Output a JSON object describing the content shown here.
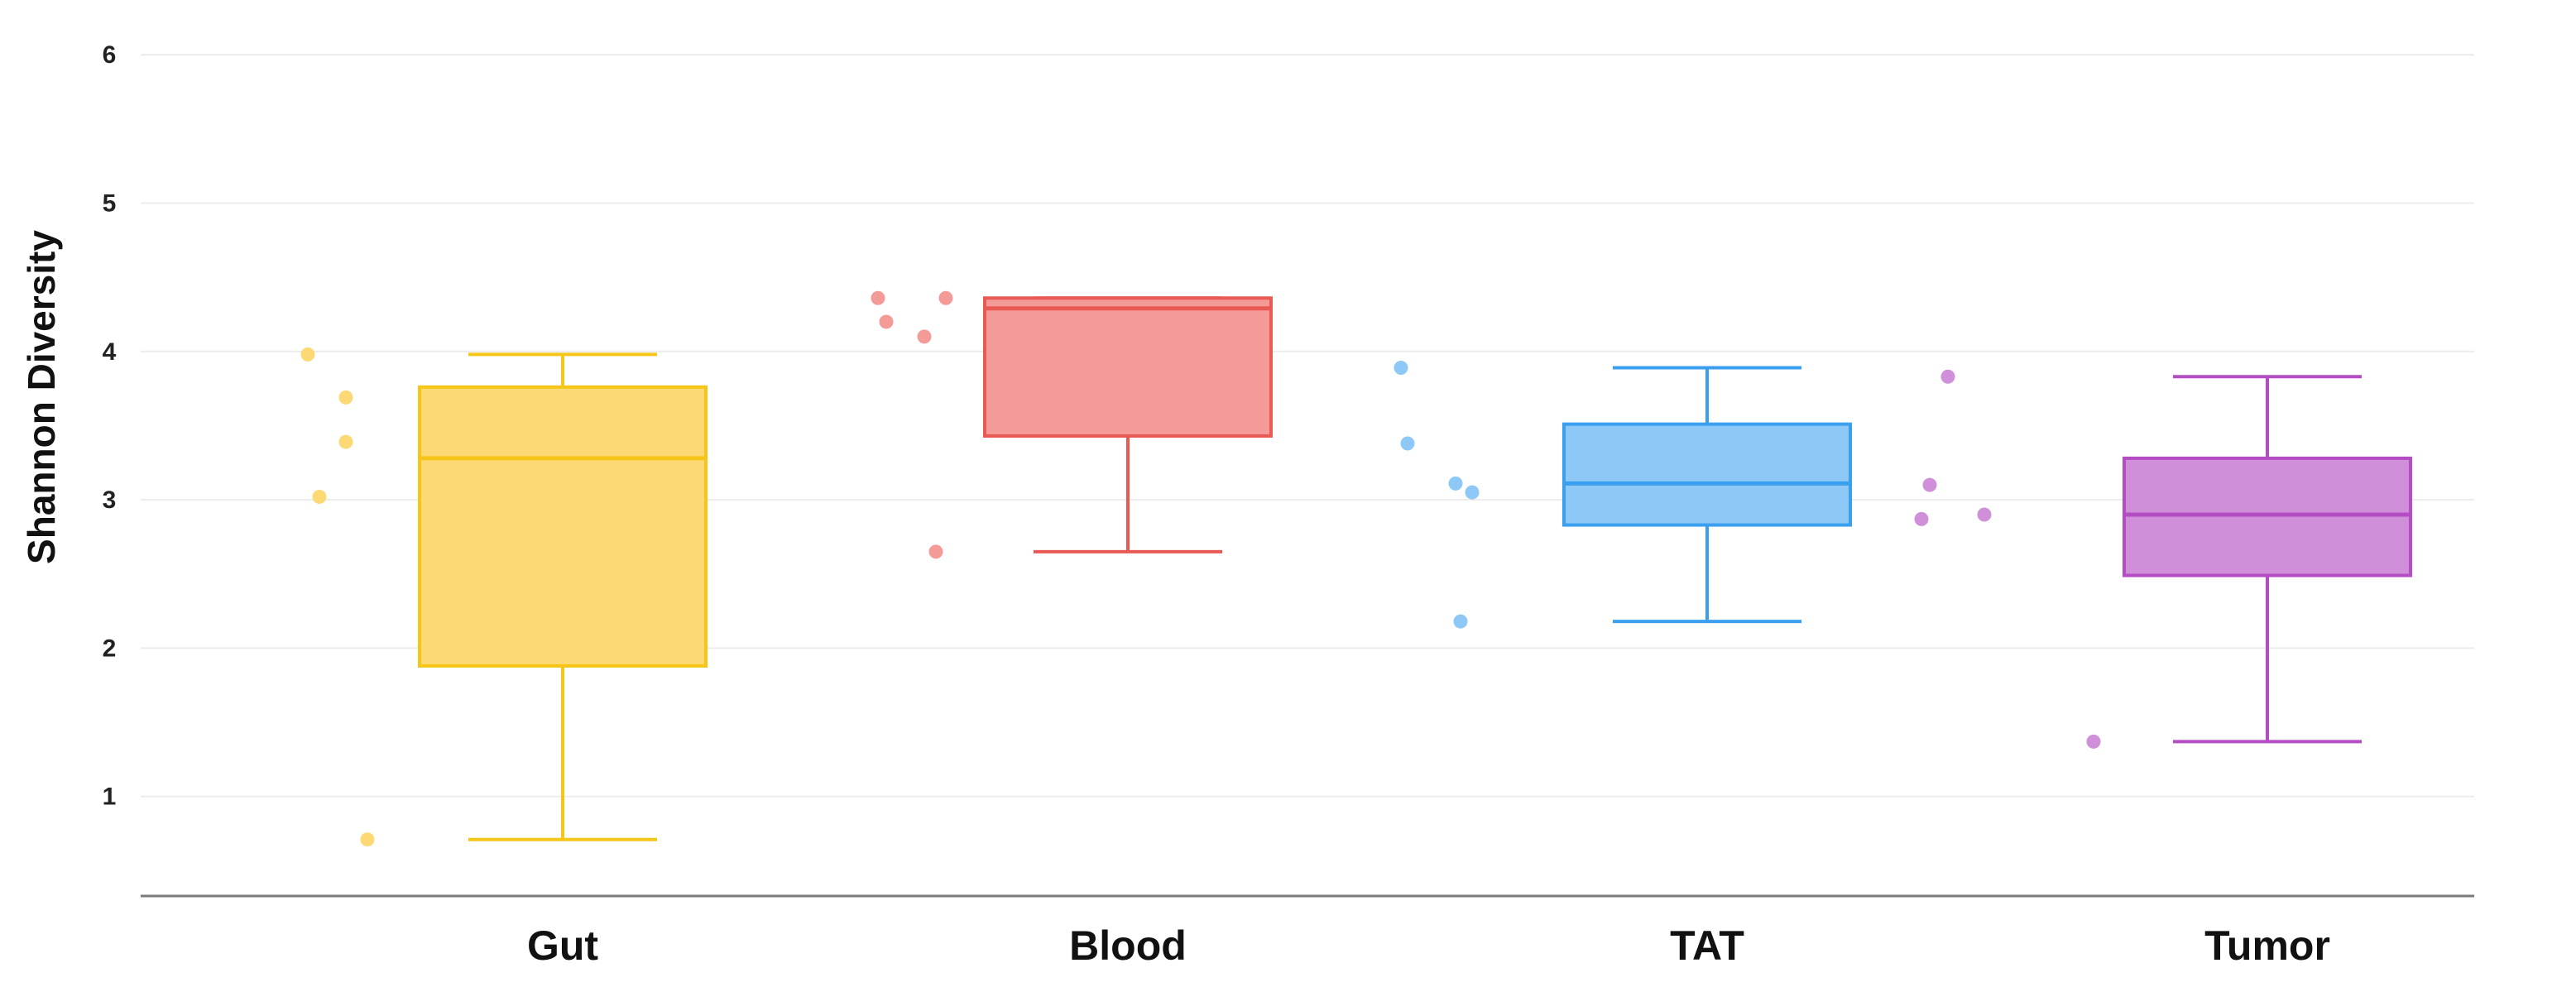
{
  "chart_data": {
    "type": "box",
    "title": "",
    "xlabel": "",
    "ylabel": "Shannon Diversity",
    "y_ticks": [
      1,
      2,
      3,
      4,
      5,
      6
    ],
    "ylim": [
      0.3,
      6.1
    ],
    "grid": true,
    "legend": "none",
    "categories": [
      "Gut",
      "Blood",
      "TAT",
      "Tumor"
    ],
    "series": [
      {
        "category": "Gut",
        "color": "#f5c518",
        "fill": "#fcd975",
        "whisker_low": 0.71,
        "q1": 1.88,
        "median": 3.28,
        "q3": 3.76,
        "whisker_high": 3.98,
        "points": [
          3.98,
          3.69,
          3.39,
          3.02,
          0.71
        ]
      },
      {
        "category": "Blood",
        "color": "#ea5a55",
        "fill": "#f49b98",
        "whisker_low": 2.65,
        "q1": 3.43,
        "median": 4.29,
        "q3": 4.36,
        "whisker_high": 4.36,
        "points": [
          4.36,
          4.2,
          4.1,
          4.36,
          2.65
        ]
      },
      {
        "category": "TAT",
        "color": "#3b9ff0",
        "fill": "#8dc8f6",
        "whisker_low": 2.18,
        "q1": 2.83,
        "median": 3.11,
        "q3": 3.51,
        "whisker_high": 3.89,
        "points": [
          3.89,
          3.38,
          3.05,
          3.11,
          2.18
        ]
      },
      {
        "category": "Tumor",
        "color": "#b44dc3",
        "fill": "#cf8fd9",
        "whisker_low": 1.37,
        "q1": 2.49,
        "median": 2.9,
        "q3": 3.28,
        "whisker_high": 3.83,
        "points": [
          3.83,
          3.1,
          2.87,
          2.9,
          1.37
        ]
      }
    ]
  }
}
